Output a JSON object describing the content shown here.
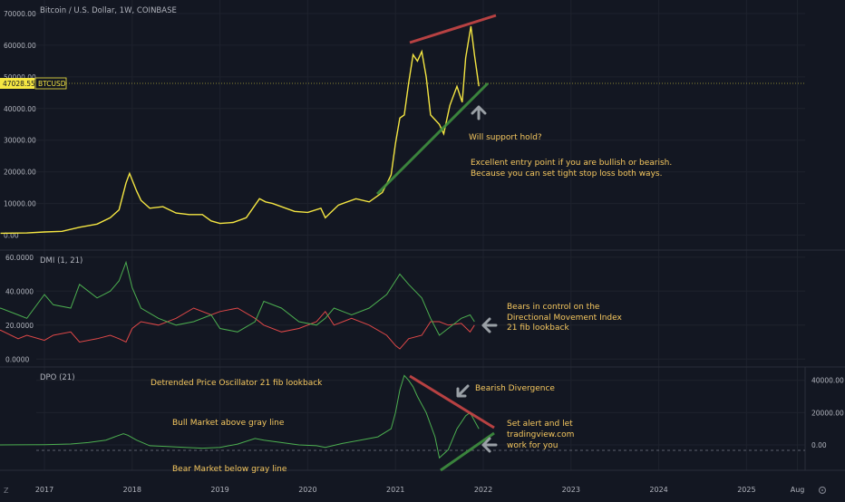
{
  "header": {
    "symbol_title": "Bitcoin / U.S. Dollar, 1W, COINBASE"
  },
  "price_badge": {
    "value": "47028.55",
    "ticker": "BTCUSD"
  },
  "panels": {
    "price": {
      "y_ticks": [
        "70000.00",
        "60000.00",
        "50000.00",
        "40000.00",
        "30000.00",
        "20000.00",
        "10000.00",
        "0.00"
      ],
      "y_tick_values": [
        70000,
        60000,
        50000,
        40000,
        30000,
        20000,
        10000,
        0
      ]
    },
    "dmi": {
      "title": "DMI (1, 21)",
      "y_ticks": [
        "60.0000",
        "40.0000",
        "20.0000",
        "0.0000"
      ],
      "y_tick_values": [
        60,
        40,
        20,
        0
      ]
    },
    "dpo": {
      "title": "DPO (21)",
      "y_ticks": [
        "40000.00",
        "20000.00",
        "0.00"
      ],
      "y_tick_values": [
        40000,
        20000,
        0
      ]
    }
  },
  "x_axis": {
    "labels": [
      "2017",
      "2018",
      "2019",
      "2020",
      "2021",
      "2022",
      "2023",
      "2024",
      "2025",
      "Aug"
    ],
    "label_years": [
      2017,
      2018,
      2019,
      2020,
      2021,
      2022,
      2023,
      2024,
      2025,
      2025.58
    ]
  },
  "annotations": {
    "will_support": "Will support hold?",
    "entry_1": "Excellent entry point if you are bullish or bearish.",
    "entry_2": "Because you can set tight stop loss both ways.",
    "bears_1": "Bears in control on the",
    "bears_2": "Directional Movement Index",
    "bears_3": "21 fib lookback",
    "dpo_note": "Detrended Price Oscillator 21 fib lookback",
    "bull_market": "Bull Market above gray line",
    "bear_market": "Bear Market below gray line",
    "bearish_div": "Bearish Divergence",
    "alert_1": "Set alert and let",
    "alert_2": "tradingview.com",
    "alert_3": "work for you"
  },
  "bottom_bar": {
    "z_label": "Z"
  },
  "colors": {
    "background": "#131722",
    "price_line": "#f5e642",
    "annotation_text": "#f6c85f",
    "resistance_line": "#c94646",
    "support_line": "#3f8f3f",
    "dmi_plus": "#4caf50",
    "dmi_minus": "#e04848",
    "dpo_line": "#4caf50",
    "arrow": "#9aa0a6"
  },
  "chart_data": [
    {
      "type": "line",
      "title": "Bitcoin / U.S. Dollar, 1W, COINBASE",
      "ylim": [
        -3000,
        72000
      ],
      "last_price": 47028.55,
      "series": [
        {
          "x": [
            2016.5,
            2016.8,
            2017.0,
            2017.2,
            2017.4,
            2017.6,
            2017.75,
            2017.85,
            2017.93,
            2017.97,
            2018.05,
            2018.1,
            2018.2,
            2018.35,
            2018.5,
            2018.65,
            2018.8,
            2018.9,
            2019.0,
            2019.15,
            2019.3,
            2019.45,
            2019.52,
            2019.6,
            2019.75,
            2019.85,
            2020.0,
            2020.15,
            2020.2,
            2020.35,
            2020.55,
            2020.7,
            2020.85,
            2020.95,
            2021.0,
            2021.05,
            2021.1,
            2021.15,
            2021.2,
            2021.25,
            2021.3,
            2021.35,
            2021.4,
            2021.5,
            2021.55,
            2021.62,
            2021.7,
            2021.76,
            2021.8,
            2021.86,
            2021.9,
            2021.95
          ],
          "values": [
            600,
            700,
            1000,
            1200,
            2500,
            3500,
            5500,
            8000,
            16500,
            19500,
            14000,
            11000,
            8500,
            9000,
            7000,
            6500,
            6500,
            4500,
            3700,
            4000,
            5500,
            11500,
            10500,
            10000,
            8500,
            7500,
            7200,
            8500,
            5500,
            9500,
            11500,
            10500,
            13500,
            19000,
            29000,
            37000,
            38000,
            48000,
            57000,
            55000,
            58000,
            50000,
            38000,
            35000,
            32000,
            41000,
            47000,
            42000,
            56000,
            66000,
            57000,
            47028
          ]
        }
      ]
    },
    {
      "type": "line",
      "title": "DMI (1, 21)",
      "ylim": [
        -2,
        62
      ],
      "series": [
        {
          "x": [
            2016.4,
            2016.5,
            2016.7,
            2016.8,
            2017.0,
            2017.1,
            2017.3,
            2017.4,
            2017.6,
            2017.75,
            2017.85,
            2017.93,
            2018.0,
            2018.1,
            2018.3,
            2018.5,
            2018.7,
            2018.9,
            2019.0,
            2019.2,
            2019.4,
            2019.5,
            2019.7,
            2019.9,
            2020.1,
            2020.2,
            2020.3,
            2020.5,
            2020.7,
            2020.9,
            2021.0,
            2021.05,
            2021.15,
            2021.3,
            2021.4,
            2021.5,
            2021.6,
            2021.75,
            2021.85,
            2021.9
          ],
          "values": [
            28,
            30,
            26,
            24,
            38,
            32,
            30,
            44,
            36,
            40,
            46,
            57,
            42,
            30,
            24,
            20,
            22,
            26,
            18,
            16,
            22,
            34,
            30,
            22,
            20,
            24,
            30,
            26,
            30,
            38,
            46,
            50,
            44,
            36,
            24,
            14,
            18,
            24,
            26,
            22
          ]
        },
        {
          "x": [
            2016.4,
            2016.5,
            2016.7,
            2016.8,
            2017.0,
            2017.1,
            2017.3,
            2017.4,
            2017.6,
            2017.75,
            2017.85,
            2017.93,
            2018.0,
            2018.1,
            2018.3,
            2018.5,
            2018.7,
            2018.9,
            2019.0,
            2019.2,
            2019.4,
            2019.5,
            2019.7,
            2019.9,
            2020.1,
            2020.2,
            2020.3,
            2020.5,
            2020.7,
            2020.9,
            2021.0,
            2021.05,
            2021.15,
            2021.3,
            2021.4,
            2021.5,
            2021.6,
            2021.75,
            2021.85,
            2021.9
          ],
          "values": [
            16,
            17,
            12,
            14,
            11,
            14,
            16,
            10,
            12,
            14,
            12,
            10,
            18,
            22,
            20,
            24,
            30,
            26,
            28,
            30,
            24,
            20,
            16,
            18,
            22,
            28,
            20,
            24,
            20,
            14,
            8,
            6,
            12,
            14,
            22,
            22,
            20,
            21,
            16,
            20
          ]
        }
      ]
    },
    {
      "type": "line",
      "title": "DPO (21)",
      "ylim": [
        -14000,
        46000
      ],
      "series": [
        {
          "x": [
            2016.4,
            2016.7,
            2017.0,
            2017.3,
            2017.5,
            2017.7,
            2017.8,
            2017.9,
            2017.95,
            2018.05,
            2018.2,
            2018.4,
            2018.6,
            2018.8,
            2019.0,
            2019.2,
            2019.4,
            2019.5,
            2019.7,
            2019.9,
            2020.1,
            2020.2,
            2020.4,
            2020.6,
            2020.8,
            2020.95,
            2021.0,
            2021.05,
            2021.1,
            2021.15,
            2021.2,
            2021.25,
            2021.35,
            2021.45,
            2021.5,
            2021.6,
            2021.7,
            2021.8,
            2021.85,
            2021.9,
            2021.95
          ],
          "values": [
            0,
            100,
            200,
            600,
            1500,
            3000,
            5000,
            7000,
            6000,
            3000,
            -500,
            -1000,
            -1500,
            -2000,
            -1500,
            500,
            4000,
            3000,
            1500,
            0,
            -500,
            -1500,
            1000,
            3000,
            5000,
            10000,
            20000,
            34000,
            43000,
            40000,
            36000,
            30000,
            20000,
            5000,
            -8000,
            -3000,
            10000,
            18000,
            20000,
            15000,
            10000
          ]
        }
      ]
    }
  ]
}
